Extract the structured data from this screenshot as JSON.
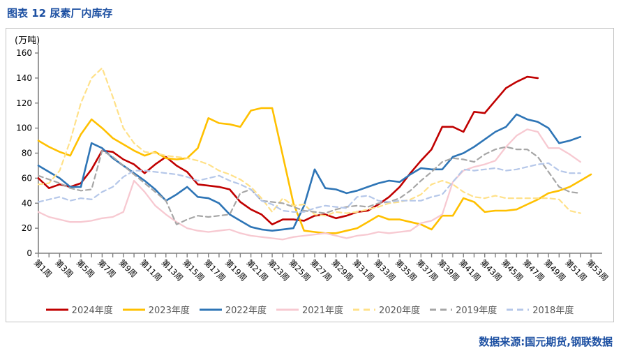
{
  "title": "图表 12 尿素厂内库存",
  "source": "数据来源:国元期货,钢联数据",
  "colors": {
    "title_blue": "#1D50A2",
    "axis_gray": "#808080",
    "box_border": "#C3C3C3",
    "legend_text": "#595959"
  },
  "chart_data": {
    "type": "line",
    "title": "图表 12 尿素厂内库存",
    "y_unit": "(万吨)",
    "ylim": [
      0,
      160
    ],
    "y_tick_step": 20,
    "y_tick_labels": [
      "0",
      "20",
      "40",
      "60",
      "80",
      "100",
      "120",
      "140",
      "160"
    ],
    "grid": false,
    "legend_position": "bottom",
    "x_tick_count": 53,
    "x_label_every": 2,
    "x_labels": [
      "第1周",
      "第3周",
      "第5周",
      "第7周",
      "第9周",
      "第11周",
      "第13周",
      "第15周",
      "第17周",
      "第19周",
      "第21周",
      "第23周",
      "第25周",
      "第27周",
      "第29周",
      "第31周",
      "第33周",
      "第35周",
      "第37周",
      "第39周",
      "第41周",
      "第43周",
      "第45周",
      "第47周",
      "第49周",
      "第51周",
      "第53周"
    ],
    "series": [
      {
        "name": "2024年度",
        "color": "#C00000",
        "dashed": false,
        "width": 2.6,
        "values": [
          60,
          52,
          55,
          53,
          56,
          67,
          82,
          81,
          75,
          71,
          64,
          71,
          77,
          70,
          65,
          55,
          54,
          53,
          51,
          41,
          35,
          31,
          23,
          27,
          27,
          26,
          30,
          31,
          28,
          30,
          33,
          34,
          39,
          45,
          53,
          64,
          74,
          83,
          101,
          101,
          97,
          113,
          112,
          122,
          132,
          137,
          141,
          140
        ]
      },
      {
        "name": "2023年度",
        "color": "#FFC000",
        "dashed": false,
        "width": 2.6,
        "values": [
          90,
          85,
          81,
          78,
          95,
          107,
          100,
          92,
          87,
          82,
          78,
          81,
          76,
          75,
          76,
          84,
          108,
          104,
          103,
          101,
          114,
          116,
          116,
          78,
          40,
          18,
          17,
          16,
          16,
          18,
          20,
          25,
          30,
          27,
          27,
          25,
          23,
          19,
          30,
          30,
          44,
          41,
          33,
          34,
          34,
          35,
          39,
          43,
          48,
          50,
          53,
          58,
          63
        ]
      },
      {
        "name": "2022年度",
        "color": "#2E75B6",
        "dashed": false,
        "width": 2.6,
        "values": [
          70,
          65,
          60,
          53,
          53,
          88,
          84,
          76,
          70,
          64,
          58,
          51,
          42,
          47,
          53,
          45,
          44,
          40,
          31,
          26,
          21,
          19,
          18,
          19,
          20,
          38,
          67,
          52,
          51,
          48,
          50,
          53,
          56,
          58,
          57,
          63,
          68,
          67,
          67,
          77,
          80,
          85,
          91,
          97,
          101,
          111,
          107,
          105,
          100,
          88,
          90,
          93
        ]
      },
      {
        "name": "2021年度",
        "color": "#F7C9D1",
        "dashed": false,
        "width": 2.3,
        "values": [
          33,
          29,
          27,
          25,
          25,
          26,
          28,
          29,
          33,
          58,
          49,
          38,
          31,
          25,
          20,
          18,
          17,
          18,
          19,
          16,
          14,
          13,
          12,
          11,
          13,
          14,
          15,
          16,
          14,
          12,
          14,
          15,
          17,
          16,
          17,
          18,
          24,
          26,
          31,
          57,
          66,
          69,
          71,
          74,
          85,
          94,
          99,
          97,
          84,
          84,
          79,
          73
        ]
      },
      {
        "name": "2020年度",
        "color": "#FFE189",
        "dashed": true,
        "width": 2.2,
        "values": [
          55,
          56,
          66,
          90,
          120,
          140,
          148,
          125,
          100,
          88,
          81,
          80,
          78,
          77,
          76,
          74,
          71,
          66,
          63,
          59,
          53,
          44,
          33,
          44,
          38,
          39,
          31,
          30,
          33,
          32,
          33,
          35,
          37,
          40,
          41,
          43,
          47,
          55,
          58,
          55,
          49,
          45,
          44,
          46,
          44,
          44,
          44,
          44,
          44,
          43,
          34,
          32
        ]
      },
      {
        "name": "2019年度",
        "color": "#A6A6A6",
        "dashed": true,
        "width": 2.2,
        "values": [
          62,
          59,
          56,
          52,
          50,
          51,
          82,
          77,
          70,
          63,
          56,
          49,
          42,
          23,
          27,
          30,
          29,
          30,
          31,
          48,
          51,
          42,
          41,
          40,
          37,
          34,
          33,
          32,
          35,
          37,
          38,
          37,
          40,
          41,
          44,
          50,
          58,
          65,
          73,
          76,
          75,
          73,
          79,
          83,
          85,
          83,
          83,
          77,
          65,
          53,
          49,
          48
        ]
      },
      {
        "name": "2018年度",
        "color": "#B5C7E9",
        "dashed": true,
        "width": 2.2,
        "values": [
          41,
          43,
          45,
          42,
          44,
          43,
          49,
          53,
          61,
          66,
          66,
          65,
          64,
          63,
          61,
          58,
          60,
          62,
          58,
          55,
          51,
          42,
          39,
          34,
          33,
          33,
          36,
          38,
          37,
          36,
          45,
          46,
          42,
          41,
          42,
          42,
          42,
          45,
          47,
          57,
          67,
          66,
          67,
          68,
          66,
          67,
          69,
          71,
          72,
          66,
          64,
          64
        ]
      }
    ]
  }
}
